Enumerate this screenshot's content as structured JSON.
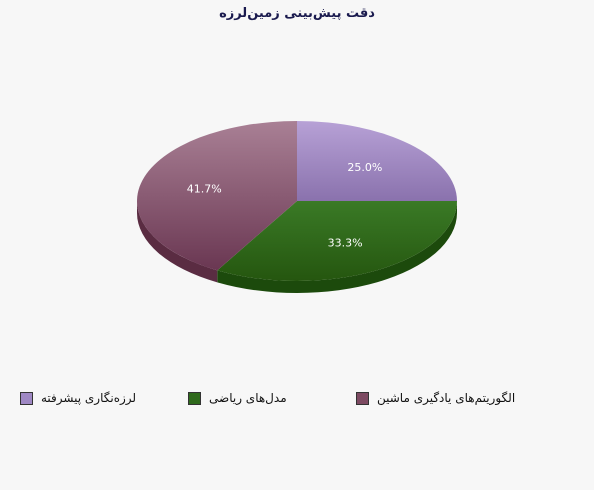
{
  "chart_data": {
    "type": "pie",
    "title": "دقت پیش‌بینی زمین‌لرزه",
    "categories": [
      "لرزه‌نگاری پیشرفته",
      "مدل‌های ریاضی",
      "الگوریتم‌های یادگیری ماشین"
    ],
    "values": [
      25.0,
      33.3,
      41.7
    ],
    "value_labels": [
      "25.0%",
      "33.3%",
      "41.7%"
    ],
    "colors": [
      "#9f88c4",
      "#2f6a1c",
      "#7d4a62"
    ],
    "legend_position": "bottom",
    "style": "3d"
  }
}
